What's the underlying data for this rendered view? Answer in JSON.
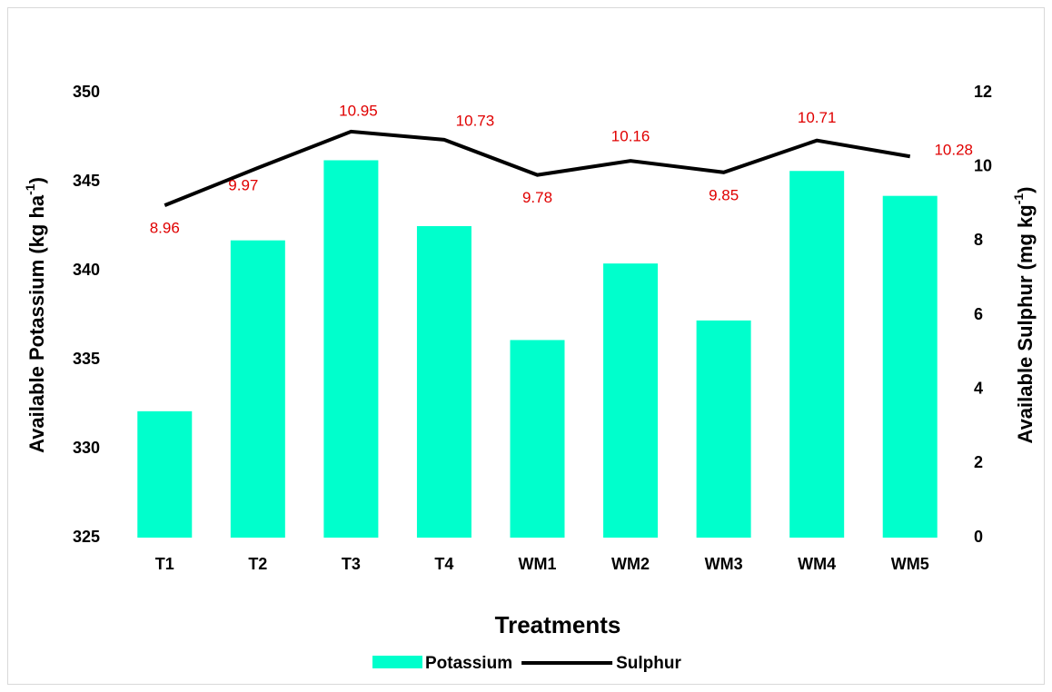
{
  "chart_data": {
    "type": "bar_line",
    "xlabel": "Treatments",
    "ylabel": {
      "text": "Available Potassium (kg ha",
      "sup": "-1",
      "end": ")"
    },
    "y2label": {
      "text": "Available Sulphur (mg kg",
      "sup": "-1",
      "end": ")"
    },
    "categories": [
      "T1",
      "T2",
      "T3",
      "T4",
      "WM1",
      "WM2",
      "WM3",
      "WM4",
      "WM5"
    ],
    "series": [
      {
        "name": "Potassium",
        "type": "bar",
        "color": "#00ffcc",
        "values": [
          332.1,
          341.7,
          346.2,
          342.5,
          336.1,
          340.4,
          337.2,
          345.6,
          344.2
        ]
      },
      {
        "name": "Sulphur",
        "type": "line",
        "axis": "y2",
        "color": "#000000",
        "values": [
          8.96,
          9.97,
          10.95,
          10.73,
          9.78,
          10.16,
          9.85,
          10.71,
          10.28
        ]
      }
    ],
    "ylim": [
      325,
      350
    ],
    "yticks": [
      325,
      330,
      335,
      340,
      345,
      350
    ],
    "y2lim": [
      0,
      12
    ],
    "y2ticks": [
      0,
      2,
      4,
      6,
      8,
      10,
      12
    ],
    "legend": "bottom"
  }
}
